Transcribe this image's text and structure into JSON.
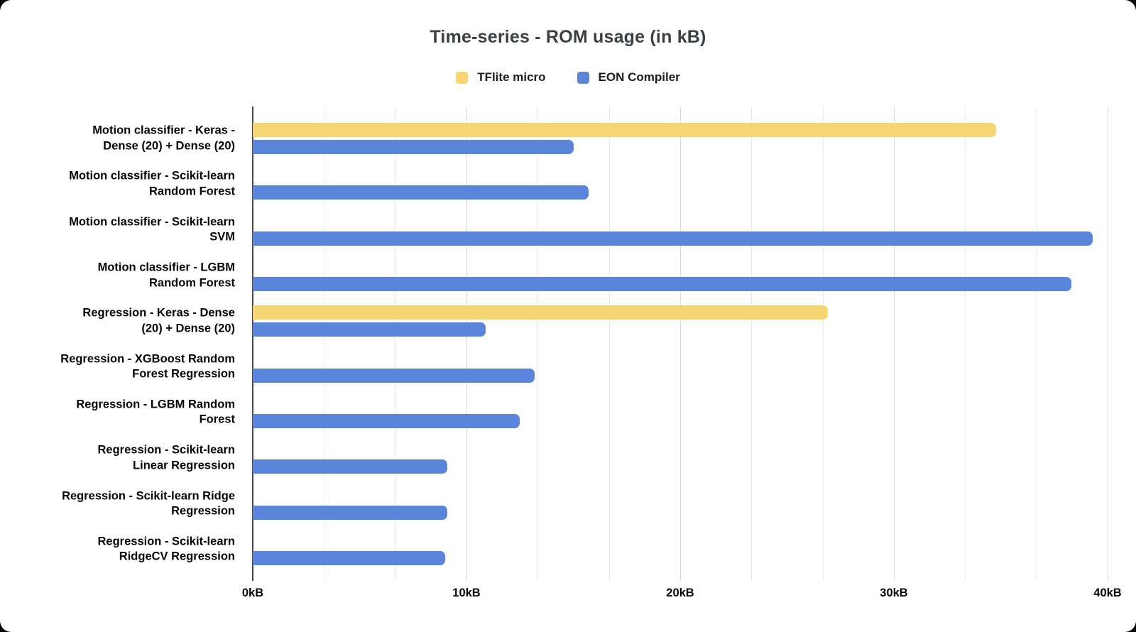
{
  "title": "Time-series - ROM usage (in kB)",
  "colors": {
    "tflite_yellow": "#f6d573",
    "eon_blue": "#5b84db",
    "title_text": "#3c4043",
    "label_text": "#050505",
    "gridline_minor": "#eaeaea",
    "gridline_major": "#d9d9d9",
    "axis_line": "#4a4a4a",
    "background": "#ffffff"
  },
  "legend": {
    "position": "top",
    "items": [
      {
        "label": "TFlite micro",
        "color": "#f6d573"
      },
      {
        "label": "EON Compiler",
        "color": "#5b84db"
      }
    ]
  },
  "chart_data": {
    "type": "bar",
    "orientation": "horizontal",
    "title": "Time-series - ROM usage (in kB)",
    "xlabel": "",
    "ylabel": "",
    "unit": "kB",
    "grid": true,
    "legend_position": "top",
    "x_axis": {
      "min": 0,
      "max": 40,
      "tick_interval": 10,
      "minor_gridlines_per_interval": 2,
      "tick_labels": [
        "0kB",
        "10kB",
        "20kB",
        "30kB",
        "40kB"
      ]
    },
    "categories": [
      "Motion classifier - Keras -\nDense (20) + Dense (20)",
      "Motion classifier  - Scikit-learn\nRandom Forest",
      "Motion classifier  - Scikit-learn\nSVM",
      "Motion classifier - LGBM\nRandom Forest",
      "Regression - Keras - Dense\n(20) + Dense (20)",
      "Regression - XGBoost Random\nForest Regression",
      "Regression - LGBM Random\nForest",
      "Regression - Scikit-learn\nLinear Regression",
      "Regression - Scikit-learn Ridge\nRegression",
      "Regression - Scikit-learn\nRidgeCV Regression"
    ],
    "series": [
      {
        "name": "TFlite micro",
        "color": "#f6d573",
        "values": [
          34.8,
          0,
          0,
          0,
          26.9,
          0,
          0,
          0,
          0,
          0
        ]
      },
      {
        "name": "EON Compiler",
        "color": "#5b84db",
        "values": [
          15.0,
          15.7,
          39.3,
          38.3,
          10.9,
          13.2,
          12.5,
          9.1,
          9.1,
          9.0
        ]
      }
    ]
  }
}
